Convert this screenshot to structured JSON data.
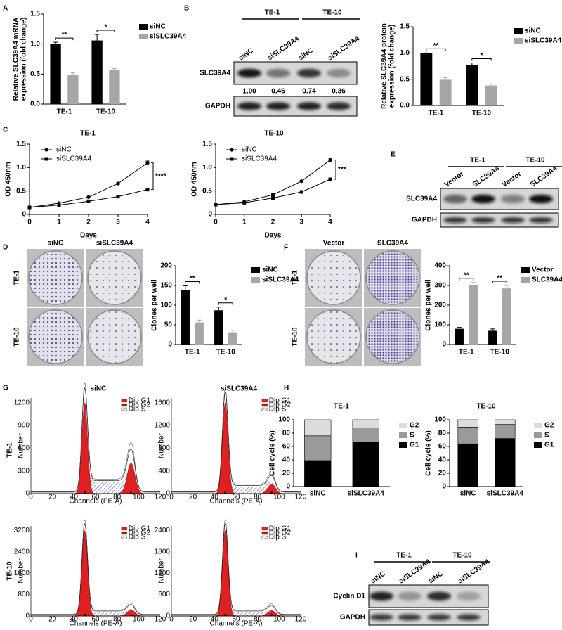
{
  "panel_letters": [
    "A",
    "B",
    "C",
    "D",
    "E",
    "F",
    "G",
    "H",
    "I"
  ],
  "chart_data": [
    {
      "type": "bar",
      "ylabel": [
        "Relative SLC39A4 mRNA",
        "expression (fold change)"
      ],
      "categories": [
        "TE-1",
        "TE-10"
      ],
      "series": [
        {
          "name": "siNC",
          "color": "#000000",
          "values": [
            1.0,
            1.06
          ],
          "errors": [
            0.03,
            0.1
          ]
        },
        {
          "name": "siSLC39A4",
          "color": "#a6a6a6",
          "values": [
            0.48,
            0.57
          ],
          "errors": [
            0.04,
            0.02
          ]
        }
      ],
      "ylim": [
        0,
        1.5
      ],
      "yticks": [
        {
          "value": 0,
          "label": "0.0"
        },
        0.5,
        {
          "value": 1,
          "label": "1.0"
        },
        1.5
      ],
      "significance": [
        "**",
        "*"
      ],
      "legend": "right"
    },
    {
      "type": "bar",
      "ylabel": [
        "Relative SLC39A4 protein",
        "expression (fold change)"
      ],
      "categories": [
        "TE-1",
        "TE-10"
      ],
      "series": [
        {
          "name": "siNC",
          "color": "#000000",
          "values": [
            1.0,
            0.77
          ],
          "errors": [
            0,
            0.04
          ]
        },
        {
          "name": "siSLC39A4",
          "color": "#a6a6a6",
          "values": [
            0.49,
            0.38
          ],
          "errors": [
            0.04,
            0.03
          ]
        }
      ],
      "ylim": [
        0,
        1.5
      ],
      "yticks": [
        {
          "value": 0,
          "label": "0.0"
        },
        0.5,
        {
          "value": 1,
          "label": "1.0"
        },
        1.5
      ],
      "significance": [
        "**",
        "*"
      ],
      "legend": "right"
    },
    {
      "type": "line",
      "title": "TE-1",
      "ylabel": [
        "OD 450nm"
      ],
      "xlabel": "Days",
      "x": [
        0,
        1,
        2,
        3,
        4
      ],
      "xlim": [
        0,
        4
      ],
      "xticks": [
        0,
        1,
        2,
        3,
        4
      ],
      "ylim": [
        0,
        1.5
      ],
      "yticks": [
        0,
        0.5,
        {
          "value": 1,
          "label": "1.0"
        },
        1.5
      ],
      "series": [
        {
          "name": "siNC",
          "color": "#000000",
          "marker": "circle",
          "values": [
            0.15,
            0.24,
            0.37,
            0.66,
            1.1
          ],
          "errors": [
            0.01,
            0.01,
            0.01,
            0.02,
            0.04
          ]
        },
        {
          "name": "siSLC39A4",
          "color": "#000000",
          "marker": "square",
          "values": [
            0.15,
            0.2,
            0.28,
            0.38,
            0.53
          ],
          "errors": [
            0.01,
            0.01,
            0.01,
            0.01,
            0.02
          ]
        }
      ],
      "significance": "****",
      "legend": "upper left"
    },
    {
      "type": "line",
      "title": "TE-10",
      "ylabel": [
        "OD 450nm"
      ],
      "xlabel": "Days",
      "x": [
        0,
        1,
        2,
        3,
        4
      ],
      "xlim": [
        0,
        4
      ],
      "xticks": [
        0,
        1,
        2,
        3,
        4
      ],
      "ylim": [
        0,
        1.5
      ],
      "yticks": [
        0,
        0.5,
        {
          "value": 1,
          "label": "1.0"
        },
        1.5
      ],
      "series": [
        {
          "name": "siNC",
          "color": "#000000",
          "marker": "circle",
          "values": [
            0.21,
            0.27,
            0.42,
            0.71,
            1.16
          ],
          "errors": [
            0.01,
            0.01,
            0.02,
            0.02,
            0.04
          ]
        },
        {
          "name": "siSLC39A4",
          "color": "#000000",
          "marker": "square",
          "values": [
            0.21,
            0.25,
            0.35,
            0.48,
            0.75
          ],
          "errors": [
            0.01,
            0.01,
            0.01,
            0.02,
            0.03
          ]
        }
      ],
      "significance": "***",
      "legend": "upper left"
    },
    {
      "type": "bar",
      "ylabel": [
        "Clones per well"
      ],
      "categories": [
        "TE-1",
        "TE-10"
      ],
      "series": [
        {
          "name": "siNC",
          "color": "#000000",
          "values": [
            139,
            87
          ],
          "errors": [
            10,
            8
          ]
        },
        {
          "name": "siSLC39A4",
          "color": "#a6a6a6",
          "values": [
            56,
            31
          ],
          "errors": [
            6,
            5
          ]
        }
      ],
      "ylim": [
        0,
        200
      ],
      "yticks": [
        0,
        50,
        100,
        150,
        200
      ],
      "significance": [
        "**",
        "*"
      ],
      "legend": "right"
    },
    {
      "type": "bar",
      "ylabel": [
        "Clones per well"
      ],
      "categories": [
        "TE-1",
        "TE-10"
      ],
      "series": [
        {
          "name": "Vector",
          "color": "#000000",
          "values": [
            80,
            70
          ],
          "errors": [
            7,
            9
          ]
        },
        {
          "name": "SLC39A4",
          "color": "#a6a6a6",
          "values": [
            300,
            285
          ],
          "errors": [
            15,
            15
          ]
        }
      ],
      "ylim": [
        0,
        400
      ],
      "yticks": [
        0,
        100,
        200,
        300,
        400
      ],
      "significance": [
        "**",
        "**"
      ],
      "legend": "right"
    },
    {
      "type": "stacked_bar",
      "title": "TE-1",
      "ylabel": [
        "Cell cycle (%)"
      ],
      "categories": [
        "siNC",
        "siSLC39A4"
      ],
      "series": [
        {
          "name": "G1",
          "color": "#000000",
          "values": [
            39,
            66
          ]
        },
        {
          "name": "S",
          "color": "#9a9a9a",
          "values": [
            37,
            22
          ]
        },
        {
          "name": "G2",
          "color": "#dcdcdc",
          "values": [
            24,
            12
          ]
        }
      ],
      "ylim": [
        0,
        100
      ],
      "yticks": [
        0,
        20,
        40,
        60,
        80,
        100
      ],
      "legend": "right"
    },
    {
      "type": "stacked_bar",
      "title": "TE-10",
      "ylabel": [
        "Cell cycle (%)"
      ],
      "categories": [
        "siNC",
        "siSLC39A4"
      ],
      "series": [
        {
          "name": "G1",
          "color": "#000000",
          "values": [
            64,
            72
          ]
        },
        {
          "name": "S",
          "color": "#9a9a9a",
          "values": [
            25,
            21
          ]
        },
        {
          "name": "G2",
          "color": "#dcdcdc",
          "values": [
            11,
            7
          ]
        }
      ],
      "ylim": [
        0,
        100
      ],
      "yticks": [
        0,
        20,
        40,
        60,
        80,
        100
      ],
      "legend": "right"
    }
  ],
  "blot_B": {
    "groups": [
      "TE-1",
      "TE-10"
    ],
    "lanes": [
      "siNC",
      "siSLC39A4",
      "siNC",
      "siSLC39A4"
    ],
    "rows": [
      "SLC39A4",
      "GAPDH"
    ],
    "quantification": [
      "1.00",
      "0.46",
      "0.74",
      "0.36"
    ]
  },
  "blot_E": {
    "groups": [
      "TE-1",
      "TE-10"
    ],
    "lanes": [
      "Vector",
      "SLC39A4",
      "Vector",
      "SLC39A4"
    ],
    "rows": [
      "SLC39A4",
      "GAPDH"
    ]
  },
  "blot_I": {
    "groups": [
      "TE-1",
      "TE-10"
    ],
    "lanes": [
      "siNC",
      "siSLC39A4",
      "siNC",
      "siSLC39A4"
    ],
    "rows": [
      "Cyclin D1",
      "GAPDH"
    ]
  },
  "plates_D": {
    "columns": [
      "siNC",
      "siSLC39A4"
    ],
    "rows": [
      "TE-1",
      "TE-10"
    ]
  },
  "plates_F": {
    "columns": [
      "Vector",
      "SLC39A4"
    ],
    "rows": [
      "TE-1",
      "TE-10"
    ]
  },
  "flow_G": {
    "columns": [
      "siNC",
      "siSLC39A4"
    ],
    "rows": [
      "TE-1",
      "TE-10"
    ],
    "xlabel": "Channels (PE-A)",
    "ylabel": "Number",
    "legend": [
      "Dip G1",
      "Dip G2",
      "Dip S"
    ],
    "xticks": [
      "0",
      "20",
      "40",
      "60",
      "80",
      "100",
      "120"
    ],
    "yticks": [
      [
        "0",
        "300",
        "600",
        "900",
        "1200"
      ],
      [
        "0",
        "400",
        "800",
        "1200",
        "1600"
      ],
      [
        "0",
        "800",
        "1600",
        "2400",
        "3200"
      ],
      [
        "0",
        "600",
        "1200",
        "1800",
        "2400"
      ]
    ]
  }
}
